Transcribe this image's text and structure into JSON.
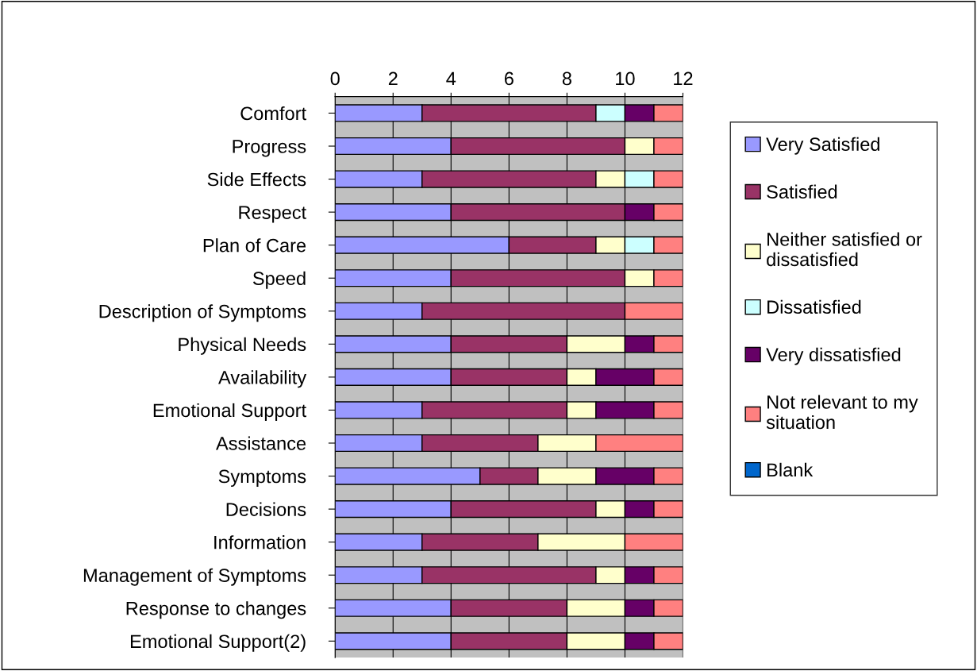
{
  "chart_data": {
    "type": "bar",
    "orientation": "horizontal",
    "stacked": true,
    "categories": [
      "Comfort",
      "Progress",
      "Side Effects",
      "Respect",
      "Plan of Care",
      "Speed",
      "Description of Symptoms",
      "Physical Needs",
      "Availability",
      "Emotional Support",
      "Assistance",
      "Symptoms",
      "Decisions",
      "Information",
      "Management of Symptoms",
      "Response to changes",
      "Emotional Support(2)"
    ],
    "series": [
      {
        "name": "Very Satisfied",
        "color": "#9999ff",
        "values": [
          3,
          4,
          3,
          4,
          6,
          4,
          3,
          4,
          4,
          3,
          3,
          5,
          4,
          3,
          3,
          4,
          4
        ]
      },
      {
        "name": "Satisfied",
        "color": "#993366",
        "values": [
          6,
          6,
          6,
          6,
          3,
          6,
          7,
          4,
          4,
          5,
          4,
          2,
          5,
          4,
          6,
          4,
          4
        ]
      },
      {
        "name": "Neither satisfied or\ndissatisfied",
        "color": "#ffffcc",
        "values": [
          0,
          1,
          1,
          0,
          1,
          1,
          0,
          2,
          1,
          1,
          2,
          2,
          1,
          3,
          1,
          2,
          2
        ]
      },
      {
        "name": "Dissatisfied",
        "color": "#ccffff",
        "values": [
          1,
          0,
          1,
          0,
          1,
          0,
          0,
          0,
          0,
          0,
          0,
          0,
          0,
          0,
          0,
          0,
          0
        ]
      },
      {
        "name": "Very dissatisfied",
        "color": "#660066",
        "values": [
          1,
          0,
          0,
          1,
          0,
          0,
          0,
          1,
          2,
          2,
          0,
          2,
          1,
          0,
          1,
          1,
          1
        ]
      },
      {
        "name": "Not relevant to my\nsituation",
        "color": "#ff8080",
        "values": [
          1,
          1,
          1,
          1,
          1,
          1,
          2,
          1,
          1,
          1,
          3,
          1,
          1,
          2,
          1,
          1,
          1
        ]
      },
      {
        "name": "Blank",
        "color": "#0066cc",
        "values": [
          0,
          0,
          0,
          0,
          0,
          0,
          0,
          0,
          0,
          0,
          0,
          0,
          0,
          0,
          0,
          0,
          0
        ]
      }
    ],
    "xlim": [
      0,
      12
    ],
    "xticks": [
      0,
      2,
      4,
      6,
      8,
      10,
      12
    ],
    "grid": "x",
    "legend": "right"
  }
}
